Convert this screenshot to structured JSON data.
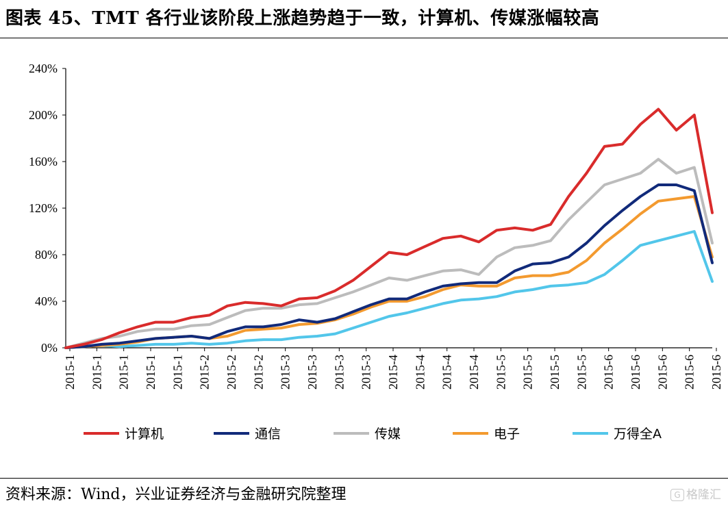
{
  "title": "图表 45、TMT 各行业该阶段上涨趋势趋于一致，计算机、传媒涨幅较高",
  "source": "资料来源：Wind，兴业证券经济与金融研究院整理",
  "watermark": {
    "icon": "G",
    "text": "格隆汇"
  },
  "chart_data": {
    "type": "line",
    "ylim": [
      0,
      240
    ],
    "yticks": [
      "0%",
      "40%",
      "80%",
      "120%",
      "160%",
      "200%",
      "240%"
    ],
    "xticks": [
      "2015-1",
      "2015-1",
      "2015-1",
      "2015-1",
      "2015-1",
      "2015-2",
      "2015-2",
      "2015-2",
      "2015-3",
      "2015-3",
      "2015-3",
      "2015-3",
      "2015-4",
      "2015-4",
      "2015-4",
      "2015-4",
      "2015-5",
      "2015-5",
      "2015-5",
      "2015-5",
      "2015-6",
      "2015-6",
      "2015-6",
      "2015-6",
      "2015-6"
    ],
    "x": [
      0,
      10,
      20,
      30,
      40,
      50,
      60,
      70,
      80,
      90,
      100,
      110,
      120,
      130,
      140,
      150,
      160,
      170,
      180,
      190,
      200,
      210,
      220,
      230,
      240,
      250,
      260,
      270,
      280,
      290,
      300,
      310,
      320,
      330,
      340,
      350,
      360
    ],
    "series": [
      {
        "name": "计算机",
        "color": "#d92b2b",
        "values": [
          0,
          3,
          7,
          13,
          18,
          22,
          22,
          26,
          28,
          36,
          39,
          38,
          36,
          42,
          43,
          49,
          58,
          70,
          82,
          80,
          87,
          94,
          96,
          91,
          101,
          103,
          101,
          106,
          130,
          150,
          173,
          175,
          192,
          205,
          187,
          200,
          116
        ]
      },
      {
        "name": "通信",
        "color": "#112a7a",
        "values": [
          0,
          1,
          3,
          4,
          6,
          8,
          9,
          10,
          8,
          14,
          18,
          18,
          20,
          24,
          22,
          25,
          31,
          37,
          42,
          42,
          48,
          53,
          55,
          56,
          56,
          66,
          72,
          73,
          78,
          90,
          105,
          118,
          130,
          140,
          140,
          135,
          73
        ]
      },
      {
        "name": "传媒",
        "color": "#bcbcbc",
        "values": [
          0,
          4,
          8,
          10,
          14,
          16,
          16,
          19,
          20,
          26,
          32,
          34,
          34,
          37,
          38,
          43,
          48,
          54,
          60,
          58,
          62,
          66,
          67,
          63,
          78,
          86,
          88,
          92,
          110,
          125,
          140,
          145,
          150,
          162,
          150,
          155,
          90
        ]
      },
      {
        "name": "电子",
        "color": "#f39a2f",
        "values": [
          0,
          1,
          2,
          3,
          5,
          8,
          9,
          10,
          8,
          10,
          15,
          16,
          17,
          20,
          21,
          24,
          29,
          35,
          40,
          40,
          44,
          50,
          54,
          53,
          53,
          60,
          62,
          62,
          65,
          75,
          90,
          102,
          115,
          126,
          128,
          130,
          78
        ]
      },
      {
        "name": "万得全A",
        "color": "#52c6ea",
        "values": [
          0,
          1,
          2,
          1,
          2,
          3,
          3,
          4,
          3,
          4,
          6,
          7,
          7,
          9,
          10,
          12,
          17,
          22,
          27,
          30,
          34,
          38,
          41,
          42,
          44,
          48,
          50,
          53,
          54,
          56,
          63,
          75,
          88,
          92,
          96,
          100,
          57
        ]
      }
    ],
    "legend": "bottom"
  }
}
